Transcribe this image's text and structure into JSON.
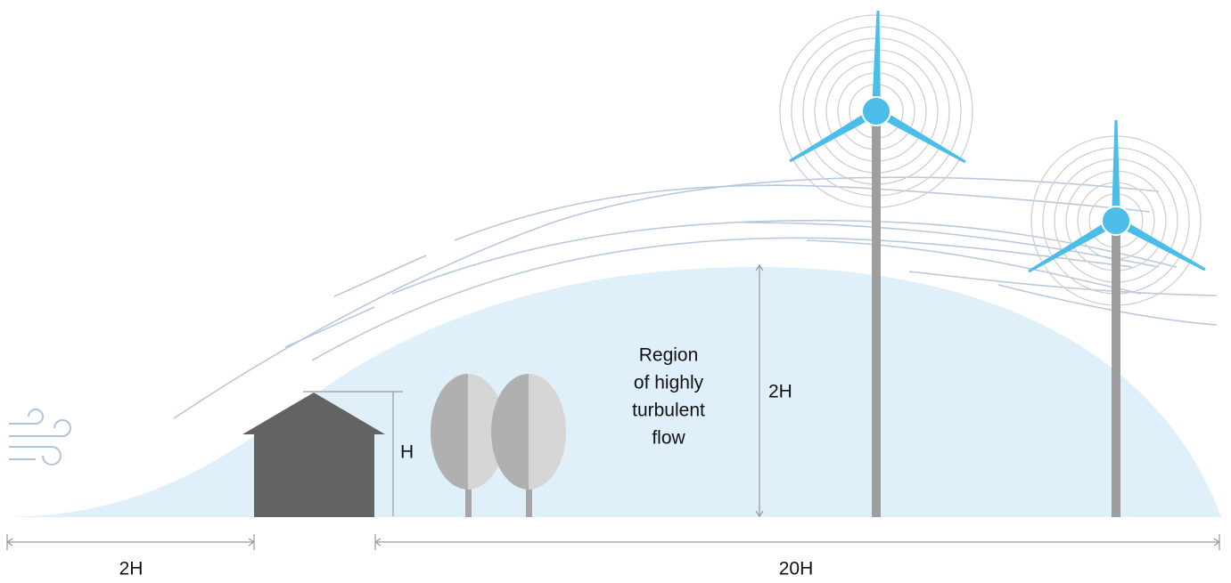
{
  "labels": {
    "region": [
      "Region",
      "of highly",
      "turbulent",
      "flow"
    ],
    "zone_height": "2H",
    "building_height": "H",
    "upwind_distance": "2H",
    "downwind_distance": "20H"
  }
}
